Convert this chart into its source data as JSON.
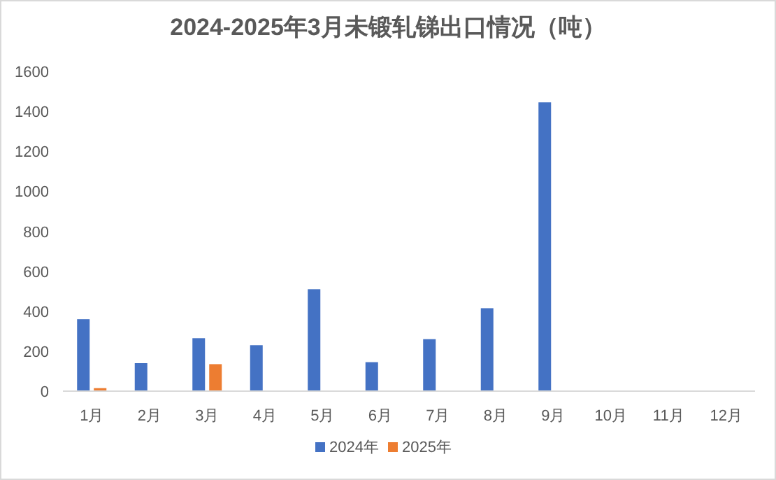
{
  "chart_data": {
    "type": "bar",
    "title": "2024-2025年3月未锻轧锑出口情况（吨）",
    "categories": [
      "1月",
      "2月",
      "3月",
      "4月",
      "5月",
      "6月",
      "7月",
      "8月",
      "9月",
      "10月",
      "11月",
      "12月"
    ],
    "series": [
      {
        "name": "2024年",
        "color": "#4472c4",
        "values": [
          360,
          140,
          265,
          230,
          510,
          145,
          260,
          415,
          1445,
          null,
          null,
          null
        ]
      },
      {
        "name": "2025年",
        "color": "#ed7d31",
        "values": [
          15,
          null,
          135,
          null,
          null,
          null,
          null,
          null,
          null,
          null,
          null,
          null
        ]
      }
    ],
    "ylim": [
      0,
      1600
    ],
    "yticks": [
      0,
      200,
      400,
      600,
      800,
      1000,
      1200,
      1400,
      1600
    ],
    "grid": false,
    "legend": "bottom"
  }
}
